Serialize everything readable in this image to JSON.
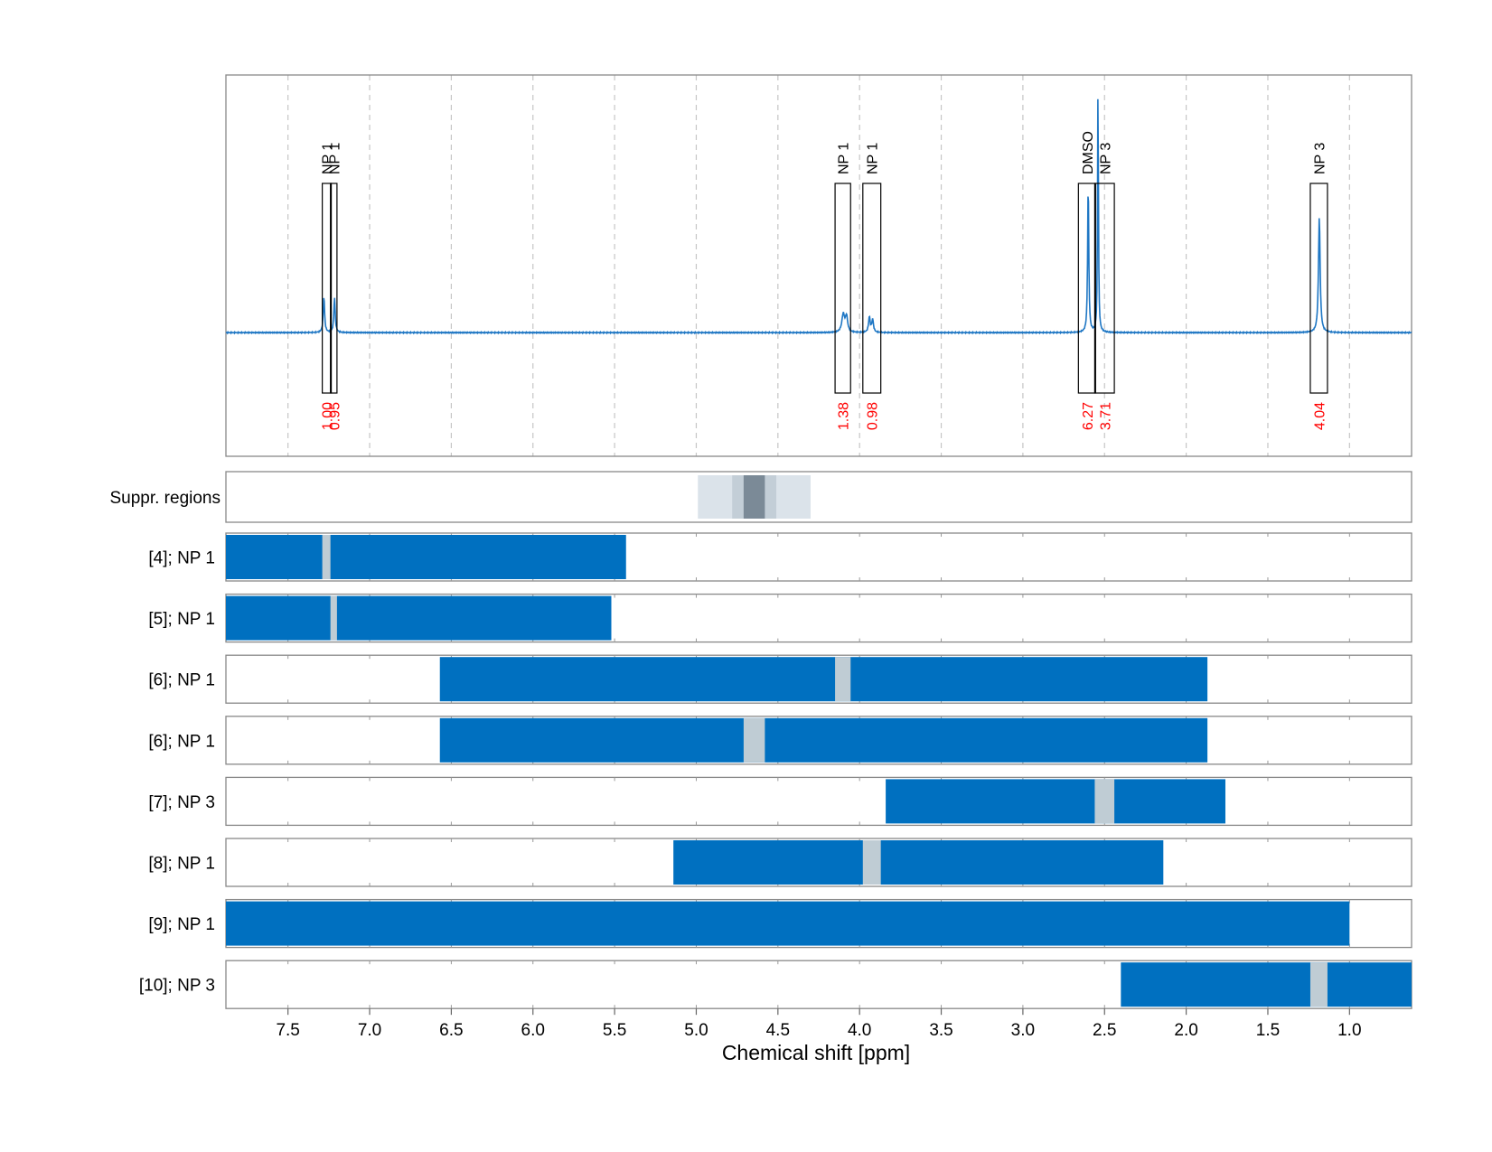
{
  "chart_data": {
    "type": "line",
    "xlabel": "Chemical shift [ppm]",
    "xlim": [
      7.88,
      0.62
    ],
    "x_ticks": [
      "7.5",
      "7.0",
      "6.5",
      "6.0",
      "5.5",
      "5.0",
      "4.5",
      "4.0",
      "3.5",
      "3.0",
      "2.5",
      "2.0",
      "1.5",
      "1.0"
    ],
    "grid": true,
    "spectrum": {
      "color": "#1f77c4",
      "baseline": 0,
      "ylim": [
        -0.48,
        1.0
      ],
      "peaks": [
        {
          "ppm": 7.28,
          "height": 0.14,
          "width": 0.005
        },
        {
          "ppm": 7.215,
          "height": 0.135,
          "width": 0.005
        },
        {
          "ppm": 4.1,
          "height": 0.07,
          "width": 0.01
        },
        {
          "ppm": 4.08,
          "height": 0.06,
          "width": 0.008
        },
        {
          "ppm": 3.94,
          "height": 0.06,
          "width": 0.006
        },
        {
          "ppm": 3.92,
          "height": 0.05,
          "width": 0.006
        },
        {
          "ppm": 2.6,
          "height": 0.59,
          "width": 0.004
        },
        {
          "ppm": 2.54,
          "height": 0.98,
          "width": 0.003
        },
        {
          "ppm": 1.185,
          "height": 0.45,
          "width": 0.006
        }
      ],
      "boxes": [
        {
          "label": "NP 1",
          "from": 7.29,
          "to": 7.235,
          "integral": "1.00"
        },
        {
          "label": "NP 1",
          "from": 7.24,
          "to": 7.2,
          "integral": "0.95"
        },
        {
          "label": "NP 1",
          "from": 4.15,
          "to": 4.055,
          "integral": "1.38"
        },
        {
          "label": "NP 1",
          "from": 3.98,
          "to": 3.87,
          "integral": "0.98"
        },
        {
          "label": "DMSO",
          "from": 2.66,
          "to": 2.555,
          "integral": "6.27"
        },
        {
          "label": "NP 3",
          "from": 2.56,
          "to": 2.44,
          "integral": "3.71"
        },
        {
          "label": "NP 3",
          "from": 1.24,
          "to": 1.135,
          "integral": "4.04"
        }
      ]
    },
    "suppression": {
      "label": "Suppr. regions",
      "regions": [
        {
          "from": 4.99,
          "to": 4.3,
          "shade": "#dbe3ea"
        },
        {
          "from": 4.78,
          "to": 4.51,
          "shade": "#c3ced7"
        },
        {
          "from": 4.71,
          "to": 4.58,
          "shade": "#7b8a97"
        }
      ]
    },
    "bar_color": "#0070c0",
    "gap_color": "#bfccd4",
    "rows": [
      {
        "label": "[4]; NP 1",
        "from": 7.88,
        "to": 5.43,
        "gap": [
          7.29,
          7.24
        ]
      },
      {
        "label": "[5]; NP 1",
        "from": 7.88,
        "to": 5.52,
        "gap": [
          7.24,
          7.2
        ]
      },
      {
        "label": "[6]; NP 1",
        "from": 6.57,
        "to": 1.87,
        "gap": [
          4.15,
          4.055
        ]
      },
      {
        "label": "[6]; NP 1",
        "from": 6.57,
        "to": 1.87,
        "gap": [
          4.71,
          4.58
        ]
      },
      {
        "label": "[7]; NP 3",
        "from": 3.84,
        "to": 1.76,
        "gap": [
          2.56,
          2.44
        ]
      },
      {
        "label": "[8]; NP 1",
        "from": 5.14,
        "to": 2.14,
        "gap": [
          3.98,
          3.87
        ]
      },
      {
        "label": "[9]; NP 1",
        "from": 7.88,
        "to": 1.0,
        "gap": null
      },
      {
        "label": "[10]; NP 3",
        "from": 2.4,
        "to": 0.62,
        "gap": [
          1.24,
          1.135
        ]
      }
    ]
  }
}
